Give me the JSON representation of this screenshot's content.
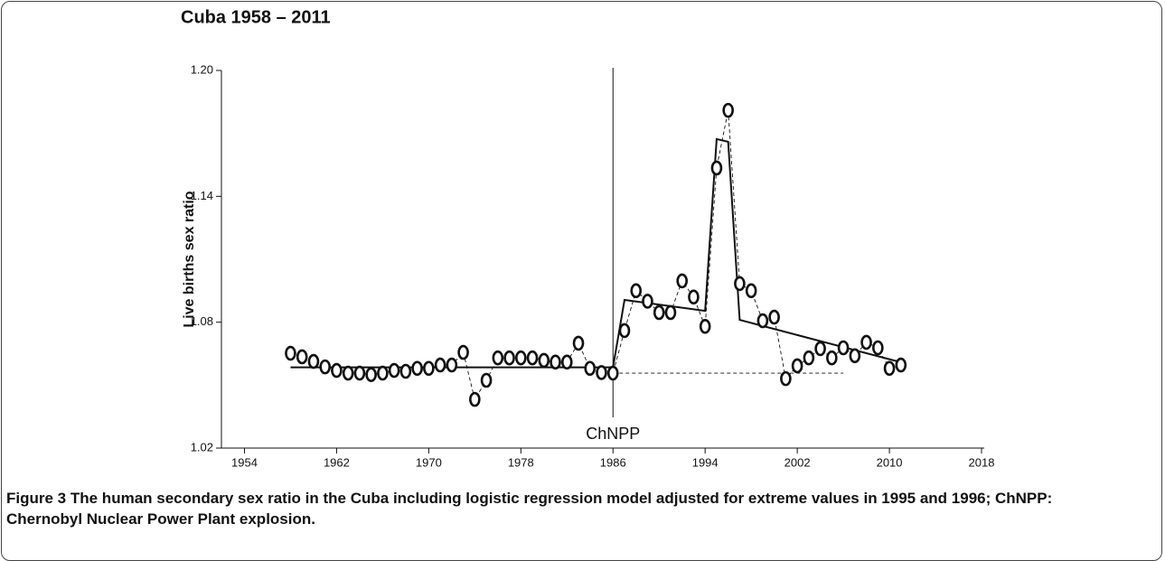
{
  "chart_data": {
    "type": "scatter",
    "title": "Cuba 1958 – 2011",
    "y_label": "Live births sex ratio",
    "annotation": "ChNPP",
    "vline_x": 1986,
    "xlim": [
      1952,
      2018
    ],
    "xticks": [
      1954,
      1962,
      1970,
      1978,
      1986,
      1994,
      2002,
      2010,
      2018
    ],
    "ylim": [
      1.02,
      1.2
    ],
    "yticks": [
      1.02,
      1.08,
      1.14,
      {
        "value": 1.2,
        "label": "1.20"
      }
    ],
    "series": [
      {
        "style": "points",
        "color": "#111111",
        "x": [
          1958,
          1959,
          1960,
          1961,
          1962,
          1963,
          1964,
          1965,
          1966,
          1967,
          1968,
          1969,
          1970,
          1971,
          1972,
          1973,
          1974,
          1975,
          1976,
          1977,
          1978,
          1979,
          1980,
          1981,
          1982,
          1983,
          1984,
          1985,
          1986,
          1987,
          1988,
          1989,
          1990,
          1991,
          1992,
          1993,
          1994,
          1995,
          1996,
          1997,
          1998,
          1999,
          2000,
          2001,
          2002,
          2003,
          2004,
          2005,
          2006,
          2007,
          2008,
          2009,
          2010,
          2011
        ],
        "values": [
          1.0652,
          1.0635,
          1.0613,
          1.0587,
          1.057,
          1.0557,
          1.0557,
          1.055,
          1.0557,
          1.057,
          1.0566,
          1.058,
          1.058,
          1.0596,
          1.0596,
          1.0656,
          1.0432,
          1.0523,
          1.063,
          1.063,
          1.063,
          1.063,
          1.0618,
          1.061,
          1.061,
          1.07,
          1.058,
          1.056,
          1.0557,
          1.076,
          1.095,
          1.09,
          1.0846,
          1.0846,
          1.0997,
          1.092,
          1.078,
          1.1535,
          1.181,
          1.0984,
          1.095,
          1.0807,
          1.0824,
          1.0531,
          1.0592,
          1.063,
          1.0674,
          1.063,
          1.0678,
          1.064,
          1.0704,
          1.0678,
          1.058,
          1.0596
        ]
      },
      {
        "style": "solid",
        "color": "#111111",
        "x": [
          1958,
          1986,
          1987,
          1994,
          1995,
          1996,
          1997,
          2011
        ],
        "values": [
          1.0585,
          1.0585,
          1.0906,
          1.0854,
          1.1673,
          1.166,
          1.0811,
          1.0609
        ]
      },
      {
        "style": "dashed",
        "color": "#111111",
        "x": [
          1986,
          2006
        ],
        "values": [
          1.0557,
          1.0557
        ]
      }
    ]
  },
  "caption": {
    "label": "Figure 3",
    "text": "The human secondary sex ratio in the Cuba including logistic regression model adjusted for extreme values in 1995 and 1996; ChNPP: Chernobyl Nuclear Power Plant explosion."
  }
}
